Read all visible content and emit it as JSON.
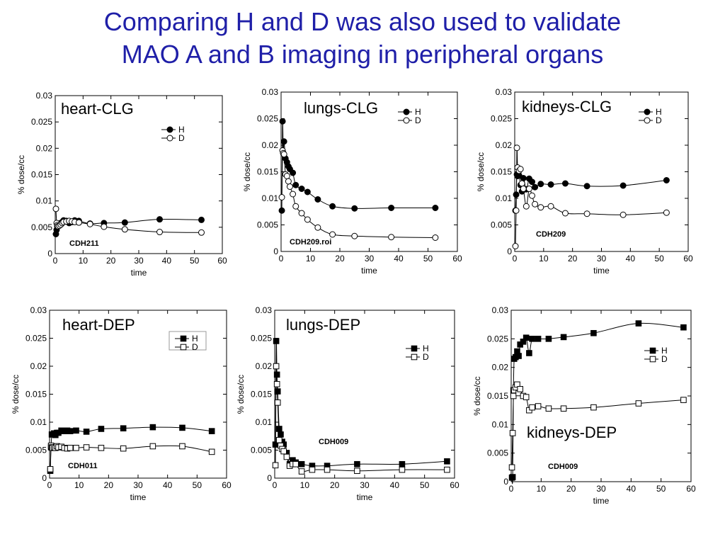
{
  "title": {
    "line1": "Comparing H and D was also used to validate",
    "line2": "MAO A and B imaging in peripheral organs"
  },
  "colors": {
    "title": "#1f1fa8"
  },
  "chart_data": [
    {
      "type": "line",
      "title": "heart-CLG",
      "label": "CDH211",
      "xlabel": "time",
      "ylabel": "% dose/cc",
      "xlim": [
        0,
        60
      ],
      "ylim": [
        0,
        0.03
      ],
      "xticks": [
        "0",
        "10",
        "20",
        "30",
        "40",
        "50",
        "60"
      ],
      "yticks": [
        "0",
        "0.005",
        "0.01",
        "0.015",
        "0.02",
        "0.025",
        "0.03"
      ],
      "marker": "circle",
      "legend_position": "top-right",
      "series": [
        {
          "name": "H",
          "filled": true,
          "x": [
            0.25,
            0.5,
            0.75,
            1,
            1.5,
            2,
            2.5,
            3,
            4,
            5,
            6,
            7,
            8.5,
            12.5,
            17.5,
            25,
            37.5,
            52.5
          ],
          "y": [
            0.0037,
            0.0045,
            0.0052,
            0.0056,
            0.0057,
            0.0058,
            0.006,
            0.0063,
            0.0062,
            0.0058,
            0.006,
            0.0063,
            0.0062,
            0.0057,
            0.0058,
            0.0059,
            0.0065,
            0.0064
          ]
        },
        {
          "name": "D",
          "filled": false,
          "x": [
            0.25,
            0.5,
            0.75,
            1,
            1.5,
            2,
            2.5,
            3,
            4,
            5,
            6,
            7,
            8.5,
            12.5,
            17.5,
            25,
            37.5,
            52.5
          ],
          "y": [
            0.0085,
            0.0058,
            0.0054,
            0.0052,
            0.0053,
            0.0055,
            0.0058,
            0.006,
            0.0061,
            0.0062,
            0.0061,
            0.006,
            0.0059,
            0.0056,
            0.0051,
            0.0046,
            0.0041,
            0.004
          ]
        }
      ]
    },
    {
      "type": "line",
      "title": "lungs-CLG",
      "label": "CDH209.roi",
      "xlabel": "time",
      "ylabel": "% dose/cc",
      "xlim": [
        0,
        60
      ],
      "ylim": [
        0,
        0.03
      ],
      "xticks": [
        "0",
        "10",
        "20",
        "30",
        "40",
        "50",
        "60"
      ],
      "yticks": [
        "0",
        "0.005",
        "0.01",
        "0.015",
        "0.02",
        "0.025",
        "0.03"
      ],
      "marker": "circle",
      "legend_position": "top-right",
      "series": [
        {
          "name": "H",
          "filled": true,
          "x": [
            0.25,
            0.5,
            0.75,
            1,
            1.5,
            2,
            2.5,
            3,
            4,
            5,
            7,
            9,
            12.5,
            17.5,
            25,
            37.5,
            52.5
          ],
          "y": [
            0.0077,
            0.0245,
            0.0185,
            0.0207,
            0.0175,
            0.0168,
            0.016,
            0.0155,
            0.0148,
            0.0125,
            0.0118,
            0.0112,
            0.0098,
            0.0085,
            0.0081,
            0.0082,
            0.0082
          ]
        },
        {
          "name": "D",
          "filled": false,
          "x": [
            0.25,
            0.5,
            0.75,
            1,
            1.5,
            2,
            2.5,
            3,
            4,
            5,
            7,
            9,
            12.5,
            17.5,
            25,
            37.5,
            52.5
          ],
          "y": [
            0.0102,
            0.019,
            0.0185,
            0.0183,
            0.0145,
            0.0142,
            0.0132,
            0.0122,
            0.0108,
            0.0085,
            0.0072,
            0.006,
            0.0045,
            0.0032,
            0.0029,
            0.0027,
            0.0026
          ]
        }
      ]
    },
    {
      "type": "line",
      "title": "kidneys-CLG",
      "label": "CDH209",
      "xlabel": "time",
      "ylabel": "% dose/cc",
      "xlim": [
        0,
        60
      ],
      "ylim": [
        0,
        0.03
      ],
      "xticks": [
        "0",
        "10",
        "20",
        "30",
        "40",
        "50",
        "60"
      ],
      "yticks": [
        "0",
        "0.005",
        "0.01",
        "0.015",
        "0.02",
        "0.025",
        "0.03"
      ],
      "marker": "circle",
      "legend_position": "top-right",
      "series": [
        {
          "name": "H",
          "filled": true,
          "x": [
            0.25,
            0.5,
            0.75,
            1,
            1.5,
            2,
            2.5,
            3,
            4,
            5,
            6,
            7,
            9,
            12.5,
            17.5,
            25,
            37.5,
            52.5
          ],
          "y": [
            0.0077,
            0.0107,
            0.0145,
            0.0142,
            0.0143,
            0.0125,
            0.0113,
            0.0138,
            0.0117,
            0.0137,
            0.0131,
            0.0121,
            0.0127,
            0.0126,
            0.0128,
            0.0123,
            0.0124,
            0.0134
          ]
        },
        {
          "name": "D",
          "filled": false,
          "x": [
            0.25,
            0.5,
            0.75,
            1,
            1.5,
            2,
            2.5,
            3,
            4,
            5,
            6,
            7,
            9,
            12.5,
            17.5,
            25,
            37.5,
            52.5
          ],
          "y": [
            0.001,
            0.0077,
            0.0195,
            0.0158,
            0.0152,
            0.0155,
            0.0128,
            0.0118,
            0.0085,
            0.0118,
            0.0105,
            0.0089,
            0.0083,
            0.0085,
            0.0072,
            0.0071,
            0.0069,
            0.0073
          ]
        }
      ]
    },
    {
      "type": "line",
      "title": "heart-DEP",
      "label": "CDH011",
      "xlabel": "time",
      "ylabel": "% dose/cc",
      "xlim": [
        0,
        60
      ],
      "ylim": [
        0,
        0.03
      ],
      "xticks": [
        "0",
        "10",
        "20",
        "30",
        "40",
        "50",
        "60"
      ],
      "yticks": [
        "0",
        "0.005",
        "0.01",
        "0.015",
        "0.02",
        "0.025",
        "0.03"
      ],
      "marker": "square",
      "legend_position": "top-right",
      "legend_boxed": true,
      "series": [
        {
          "name": "H",
          "filled": true,
          "x": [
            0.25,
            0.5,
            0.75,
            1,
            1.5,
            2,
            2.5,
            3,
            4,
            5,
            6,
            7,
            9,
            12.5,
            17.5,
            25,
            35,
            45,
            55
          ],
          "y": [
            0.0013,
            0.0055,
            0.0078,
            0.0078,
            0.008,
            0.0077,
            0.0081,
            0.0081,
            0.0085,
            0.0084,
            0.0085,
            0.0084,
            0.0085,
            0.0083,
            0.0088,
            0.0089,
            0.0091,
            0.009,
            0.0084
          ]
        },
        {
          "name": "D",
          "filled": false,
          "x": [
            0.25,
            0.5,
            0.75,
            1,
            1.5,
            2,
            2.5,
            3,
            4,
            5,
            6,
            7,
            9,
            12.5,
            17.5,
            25,
            35,
            45,
            55
          ],
          "y": [
            0.0016,
            0.0058,
            0.0055,
            0.0054,
            0.0055,
            0.0054,
            0.0057,
            0.0055,
            0.0056,
            0.0054,
            0.0053,
            0.0054,
            0.0054,
            0.0055,
            0.0054,
            0.0053,
            0.0057,
            0.0057,
            0.0047
          ]
        }
      ]
    },
    {
      "type": "line",
      "title": "lungs-DEP",
      "label": "CDH009",
      "xlabel": "time",
      "ylabel": "% dose/cc",
      "xlim": [
        0,
        60
      ],
      "ylim": [
        0,
        0.03
      ],
      "xticks": [
        "0",
        "10",
        "20",
        "30",
        "40",
        "50",
        "60"
      ],
      "yticks": [
        "0",
        "0.005",
        "0.01",
        "0.015",
        "0.02",
        "0.025",
        "0.03"
      ],
      "marker": "square",
      "legend_position": "top-right",
      "series": [
        {
          "name": "H",
          "filled": true,
          "x": [
            0.25,
            0.5,
            0.75,
            1,
            1.5,
            2,
            2.5,
            3,
            4,
            5,
            6,
            7,
            9,
            12.5,
            17.5,
            27.5,
            42.5,
            57.5
          ],
          "y": [
            0.006,
            0.0245,
            0.0185,
            0.0155,
            0.0088,
            0.0078,
            0.0065,
            0.006,
            0.0045,
            0.0025,
            0.0032,
            0.0028,
            0.0025,
            0.0022,
            0.0022,
            0.0025,
            0.0025,
            0.003
          ]
        },
        {
          "name": "D",
          "filled": false,
          "x": [
            0.25,
            0.5,
            0.75,
            1,
            1.5,
            2,
            2.5,
            3,
            4,
            5,
            6,
            7,
            9,
            12.5,
            17.5,
            27.5,
            42.5,
            57.5
          ],
          "y": [
            0.0023,
            0.02,
            0.0168,
            0.0135,
            0.0068,
            0.0058,
            0.0052,
            0.0048,
            0.0038,
            0.0022,
            0.0025,
            0.0025,
            0.0012,
            0.0015,
            0.0015,
            0.0013,
            0.0015,
            0.0015
          ]
        }
      ]
    },
    {
      "type": "line",
      "title": "kidneys-DEP",
      "label": "CDH009",
      "xlabel": "time",
      "ylabel": "% dose/cc",
      "xlim": [
        0,
        60
      ],
      "ylim": [
        0,
        0.03
      ],
      "xticks": [
        "0",
        "10",
        "20",
        "30",
        "40",
        "50",
        "60"
      ],
      "yticks": [
        "0",
        "0.005",
        "0.01",
        "0.015",
        "0.02",
        "0.025",
        "0.03"
      ],
      "marker": "square",
      "legend_position": "top-right",
      "series": [
        {
          "name": "H",
          "filled": true,
          "x": [
            0.25,
            0.5,
            0.75,
            1,
            1.5,
            2,
            2.5,
            3,
            4,
            5,
            6,
            7,
            9,
            12.5,
            17.5,
            27.5,
            42.5,
            57.5
          ],
          "y": [
            0.0007,
            0.0008,
            0.016,
            0.0215,
            0.0218,
            0.0228,
            0.022,
            0.024,
            0.0245,
            0.0252,
            0.0225,
            0.025,
            0.025,
            0.025,
            0.0253,
            0.026,
            0.0277,
            0.027
          ]
        },
        {
          "name": "D",
          "filled": false,
          "x": [
            0.25,
            0.5,
            0.75,
            1,
            1.5,
            2,
            2.5,
            3,
            4,
            5,
            6,
            7,
            9,
            12.5,
            17.5,
            27.5,
            42.5,
            57.5
          ],
          "y": [
            0.0025,
            0.0085,
            0.015,
            0.016,
            0.0165,
            0.017,
            0.0155,
            0.0162,
            0.015,
            0.0148,
            0.0125,
            0.013,
            0.0132,
            0.0128,
            0.0128,
            0.013,
            0.0137,
            0.0143
          ]
        }
      ]
    }
  ]
}
